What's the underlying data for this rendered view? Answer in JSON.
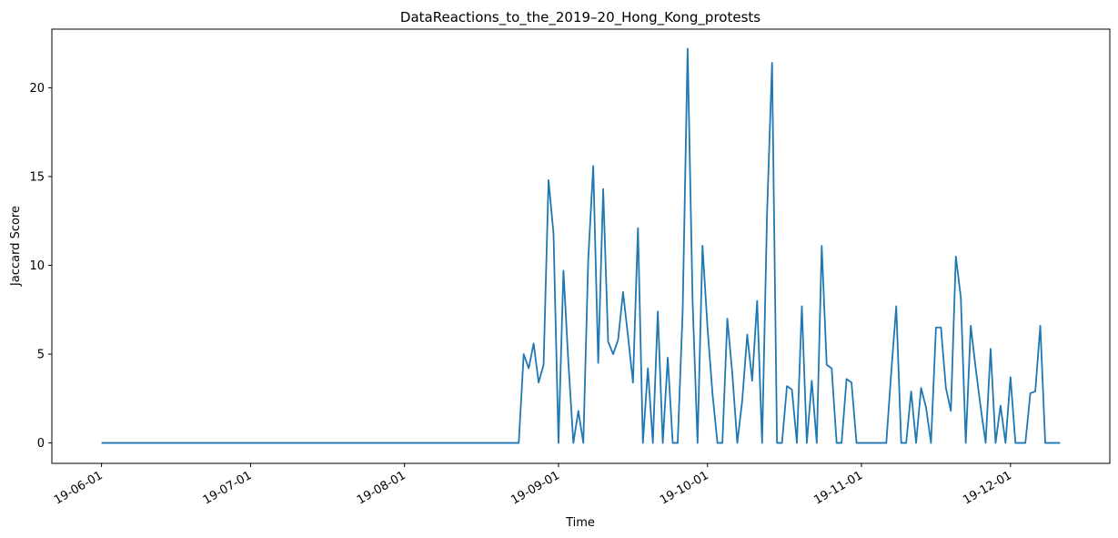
{
  "chart_data": {
    "type": "line",
    "title": "DataReactions_to_the_2019–20_Hong_Kong_protests",
    "xlabel": "Time",
    "ylabel": "Jaccard Score",
    "x": [
      "19-06-01",
      "19-08-24",
      "19-08-25",
      "19-08-26",
      "19-08-27",
      "19-08-28",
      "19-08-29",
      "19-08-30",
      "19-08-31",
      "19-09-01",
      "19-09-02",
      "19-09-03",
      "19-09-04",
      "19-09-05",
      "19-09-06",
      "19-09-07",
      "19-09-08",
      "19-09-09",
      "19-09-10",
      "19-09-11",
      "19-09-12",
      "19-09-13",
      "19-09-14",
      "19-09-15",
      "19-09-16",
      "19-09-17",
      "19-09-18",
      "19-09-19",
      "19-09-20",
      "19-09-21",
      "19-09-22",
      "19-09-23",
      "19-09-24",
      "19-09-25",
      "19-09-26",
      "19-09-27",
      "19-09-28",
      "19-09-29",
      "19-09-30",
      "19-10-01",
      "19-10-02",
      "19-10-03",
      "19-10-04",
      "19-10-05",
      "19-10-06",
      "19-10-07",
      "19-10-08",
      "19-10-09",
      "19-10-10",
      "19-10-11",
      "19-10-12",
      "19-10-13",
      "19-10-14",
      "19-10-15",
      "19-10-16",
      "19-10-17",
      "19-10-18",
      "19-10-19",
      "19-10-20",
      "19-10-21",
      "19-10-22",
      "19-10-23",
      "19-10-24",
      "19-10-25",
      "19-10-26",
      "19-10-27",
      "19-10-28",
      "19-10-29",
      "19-10-30",
      "19-10-31",
      "19-11-01",
      "19-11-02",
      "19-11-03",
      "19-11-04",
      "19-11-05",
      "19-11-06",
      "19-11-07",
      "19-11-08",
      "19-11-09",
      "19-11-10",
      "19-11-11",
      "19-11-12",
      "19-11-13",
      "19-11-14",
      "19-11-15",
      "19-11-16",
      "19-11-17",
      "19-11-18",
      "19-11-19",
      "19-11-20",
      "19-11-21",
      "19-11-22",
      "19-11-23",
      "19-11-24",
      "19-11-25",
      "19-11-26",
      "19-11-27",
      "19-11-28",
      "19-11-29",
      "19-11-30",
      "19-12-01",
      "19-12-02",
      "19-12-03",
      "19-12-04",
      "19-12-05",
      "19-12-06",
      "19-12-07",
      "19-12-08",
      "19-12-09",
      "19-12-10",
      "19-12-11"
    ],
    "series": [
      {
        "color": "#1f77b4",
        "values": [
          0,
          0,
          5.0,
          4.2,
          5.6,
          3.4,
          4.4,
          14.8,
          11.8,
          0,
          9.7,
          4.5,
          0,
          1.8,
          0,
          10.4,
          15.6,
          4.5,
          14.3,
          5.7,
          5.0,
          5.8,
          8.5,
          6.0,
          3.4,
          12.1,
          0,
          4.2,
          0,
          7.4,
          0,
          4.8,
          0,
          0,
          7.4,
          22.2,
          8.0,
          0,
          11.1,
          6.5,
          2.8,
          0,
          0,
          7.0,
          3.9,
          0,
          2.4,
          6.1,
          3.5,
          8.0,
          0,
          13.0,
          21.4,
          0,
          0,
          3.2,
          3.0,
          0,
          7.7,
          0,
          3.5,
          0,
          11.1,
          4.4,
          4.2,
          0,
          0,
          3.6,
          3.4,
          0,
          0,
          0,
          0,
          0,
          0,
          0,
          4.0,
          7.7,
          0,
          0,
          2.9,
          0,
          3.1,
          2.0,
          0,
          6.5,
          6.5,
          3.1,
          1.8,
          10.5,
          8.2,
          0,
          6.6,
          4.2,
          2.0,
          0,
          5.3,
          0,
          2.1,
          0,
          3.7,
          0,
          0,
          0,
          2.8,
          2.9,
          6.6,
          0,
          0,
          0,
          0
        ]
      }
    ],
    "xlim": [
      "19-05-22",
      "19-12-21"
    ],
    "xticks": [
      "19-06-01",
      "19-07-01",
      "19-08-01",
      "19-09-01",
      "19-10-01",
      "19-11-01",
      "19-12-01"
    ],
    "ylim": [
      -1.15,
      23.3
    ],
    "yticks": [
      0,
      5,
      10,
      15,
      20
    ]
  }
}
